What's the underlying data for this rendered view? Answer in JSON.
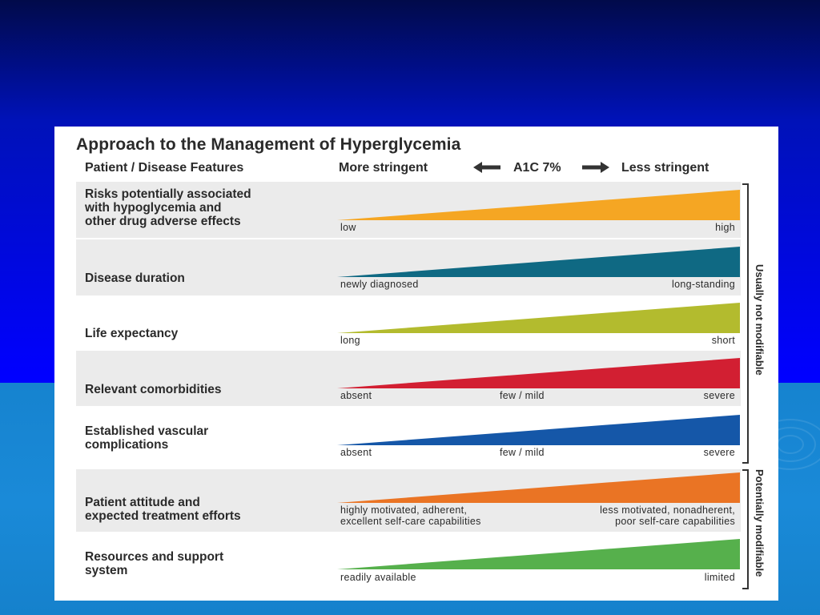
{
  "title": "Approach to the Management of Hyperglycemia",
  "header": {
    "features": "Patient / Disease Features",
    "more_stringent": "More stringent",
    "a1c": "A1C 7%",
    "less_stringent": "Less stringent"
  },
  "rows": [
    {
      "label": "Risks potentially associated\nwith hypoglycemia and\nother drug adverse effects",
      "color": "#f5a623",
      "left": "low",
      "right": "high",
      "level_range": [
        0,
        1
      ]
    },
    {
      "label": "Disease duration",
      "color": "#0f6983",
      "left": "newly diagnosed",
      "right": "long-standing",
      "level_range": [
        0,
        1
      ]
    },
    {
      "label": "Life expectancy",
      "color": "#b3bb2e",
      "left": "long",
      "right": "short",
      "level_range": [
        0,
        1
      ]
    },
    {
      "label": "Relevant comorbidities",
      "color": "#d21f32",
      "left": "absent",
      "mid": "few / mild",
      "right": "severe",
      "level_range": [
        0,
        1
      ]
    },
    {
      "label": "Established vascular\ncomplications",
      "color": "#1557a8",
      "left": "absent",
      "mid": "few / mild",
      "right": "severe",
      "level_range": [
        0,
        1
      ]
    },
    {
      "label": "Patient attitude and\nexpected treatment efforts",
      "color": "#ea7424",
      "left": "highly motivated, adherent,\nexcellent self-care capabilities",
      "right": "less motivated, nonadherent,\npoor self-care capabilities",
      "level_range": [
        0,
        1
      ]
    },
    {
      "label": "Resources and support\nsystem",
      "color": "#56b04c",
      "left": "readily available",
      "right": "limited",
      "level_range": [
        0,
        1
      ]
    }
  ],
  "groups": {
    "not_modifiable": "Usually not modifiable",
    "modifiable": "Potentially modifiable"
  },
  "colors": {
    "arrow": "#333333",
    "background_top": "#010a4a",
    "background_bottom": "#1a8ad8"
  }
}
